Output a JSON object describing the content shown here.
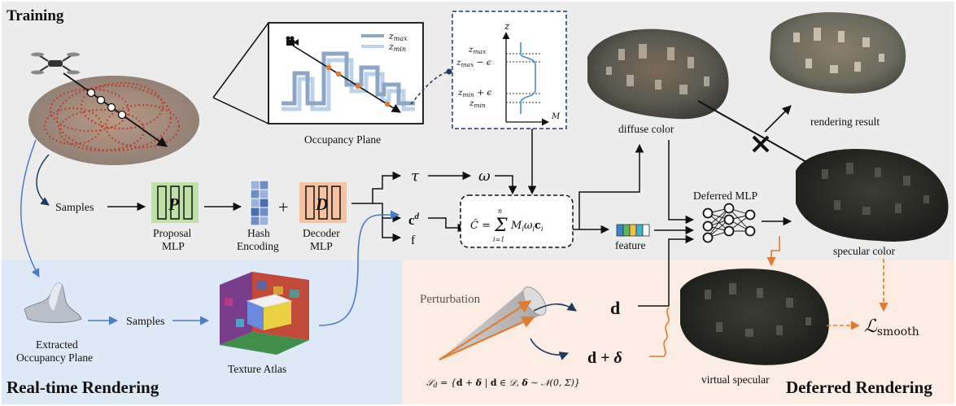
{
  "sections": {
    "training": "Training",
    "realtime": "Real-time Rendering",
    "deferred": "Deferred Rendering"
  },
  "labels": {
    "occupancy_plane": "Occupancy Plane",
    "samples": "Samples",
    "proposal_mlp_1": "Proposal",
    "proposal_mlp_2": "MLP",
    "proposal_letter": "P",
    "hash_1": "Hash",
    "hash_2": "Encoding",
    "decoder_1": "Decoder",
    "decoder_2": "MLP",
    "decoder_letter": "D",
    "diffuse_color": "diffuse color",
    "rendering_result": "rendering result",
    "deferred_mlp": "Deferred MLP",
    "specular_color": "specular color",
    "feature": "feature",
    "extracted_1": "Extracted",
    "extracted_2": "Occupancy Plane",
    "samples_rt": "Samples",
    "texture_atlas": "Texture Atlas",
    "perturbation": "Perturbation",
    "virtual_specular": "virtual specular",
    "plus": "+"
  },
  "math": {
    "zmax_legend": "z_max",
    "zmin_legend": "z_min",
    "z_axis": "z",
    "m_axis": "M",
    "zmax": "z_max",
    "zmax_eps": "z_max − ϵ",
    "zmin_eps": "z_min + ϵ",
    "zmin": "z_min",
    "tau": "τ",
    "omega": "ω",
    "cd": "c^d",
    "f": "f",
    "formula": "Ĉ = Σ_{i=1}^{n} M_i ω_i c_i",
    "d": "d",
    "d_delta": "d + δ",
    "loss": "ℒ_smooth",
    "set": "S_d = {d + δ | d ∈ D, δ ∼ N(0, Σ)}"
  },
  "colors": {
    "training_bg": "#ececec",
    "realtime_bg": "#dde9f6",
    "deferred_bg": "#fbece4",
    "proposal_fill": "#bfe0a6",
    "decoder_fill": "#f6c3a2",
    "hash_fill": "#6f8ec4",
    "blue_arrow": "#4a7bc8",
    "orange_arrow": "#e07b32",
    "occupancy_dark": "#8da6c6",
    "occupancy_light": "#bcd2ea"
  }
}
